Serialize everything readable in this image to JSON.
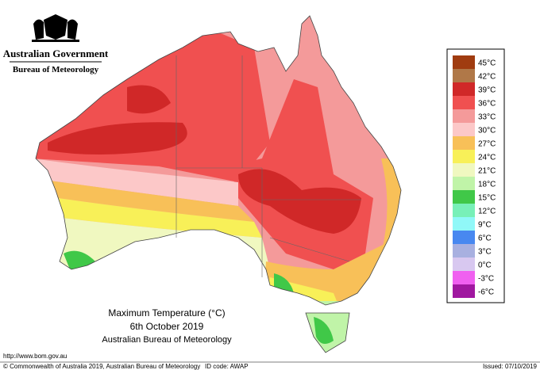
{
  "header": {
    "title": "Australian Government",
    "subtitle": "Bureau of Meteorology"
  },
  "map": {
    "title": "Maximum Temperature (°C)",
    "date": "6th October 2019",
    "source": "Australian Bureau of Meteorology"
  },
  "legend": [
    {
      "label": "45°C",
      "color": "#a03c10"
    },
    {
      "label": "42°C",
      "color": "#b07848"
    },
    {
      "label": "39°C",
      "color": "#d02828"
    },
    {
      "label": "36°C",
      "color": "#f05050"
    },
    {
      "label": "33°C",
      "color": "#f49a9a"
    },
    {
      "label": "30°C",
      "color": "#fcc8c8"
    },
    {
      "label": "27°C",
      "color": "#f8c058"
    },
    {
      "label": "24°C",
      "color": "#f8f058"
    },
    {
      "label": "21°C",
      "color": "#f0f8c0"
    },
    {
      "label": "18°C",
      "color": "#c0f4a8"
    },
    {
      "label": "15°C",
      "color": "#40c848"
    },
    {
      "label": "12°C",
      "color": "#78f0b8"
    },
    {
      "label": "9°C",
      "color": "#90f8f8"
    },
    {
      "label": "6°C",
      "color": "#4888f0"
    },
    {
      "label": "3°C",
      "color": "#a8b0e0"
    },
    {
      "label": "0°C",
      "color": "#d8c8f0"
    },
    {
      "label": "-3°C",
      "color": "#f060f0"
    },
    {
      "label": "-6°C",
      "color": "#a018a0"
    }
  ],
  "footer": {
    "url": "http://www.bom.gov.au",
    "copyright": "© Commonwealth of Australia 2019, Australian Bureau of Meteorology",
    "id": "ID code: AWAP",
    "issued": "Issued: 07/10/2019"
  }
}
